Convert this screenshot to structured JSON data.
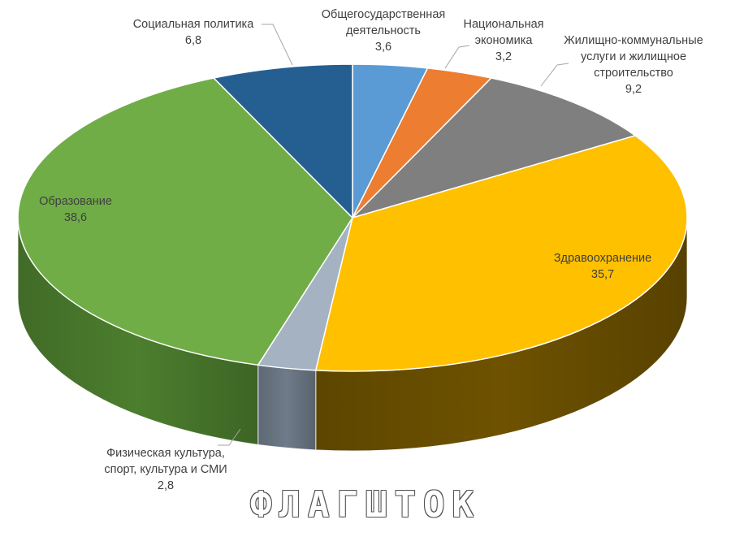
{
  "chart_data": {
    "type": "pie",
    "series": [
      {
        "name": "Общегосударственная деятельность",
        "label_lines": [
          "Общегосударственная",
          "деятельность"
        ],
        "value": 3.6,
        "value_text": "3,6",
        "color": "#5b9bd5",
        "side_color": "#3f77a8"
      },
      {
        "name": "Национальная экономика",
        "label_lines": [
          "Национальная",
          "экономика"
        ],
        "value": 3.2,
        "value_text": "3,2",
        "color": "#ed7d31",
        "side_color": "#b35a1e"
      },
      {
        "name": "Жилищно-коммунальные услуги и жилищное строительство",
        "label_lines": [
          "Жилищно-коммунальные",
          "услуги и жилищное",
          "строительство"
        ],
        "value": 9.2,
        "value_text": "9,2",
        "color": "#7f7f7f",
        "side_color": "#555555"
      },
      {
        "name": "Здравоохранение",
        "label_lines": [
          "Здравоохранение"
        ],
        "value": 35.7,
        "value_text": "35,7",
        "color": "#ffc000",
        "side_color": "#6e5200"
      },
      {
        "name": "Физическая культура, спорт, культура и СМИ",
        "label_lines": [
          "Физическая культура,",
          "спорт, культура и СМИ"
        ],
        "value": 2.8,
        "value_text": "2,8",
        "color": "#a5b2c2",
        "side_color": "#6f7b89"
      },
      {
        "name": "Образование",
        "label_lines": [
          "Образование"
        ],
        "value": 38.6,
        "value_text": "38,6",
        "color": "#70ad47",
        "side_color": "#4c7e2e"
      },
      {
        "name": "Социальная политика",
        "label_lines": [
          "Социальная политика"
        ],
        "value": 6.8,
        "value_text": "6,8",
        "color": "#255e91",
        "side_color": "#1a4368"
      }
    ]
  },
  "watermark": "ФЛАГШТОК"
}
